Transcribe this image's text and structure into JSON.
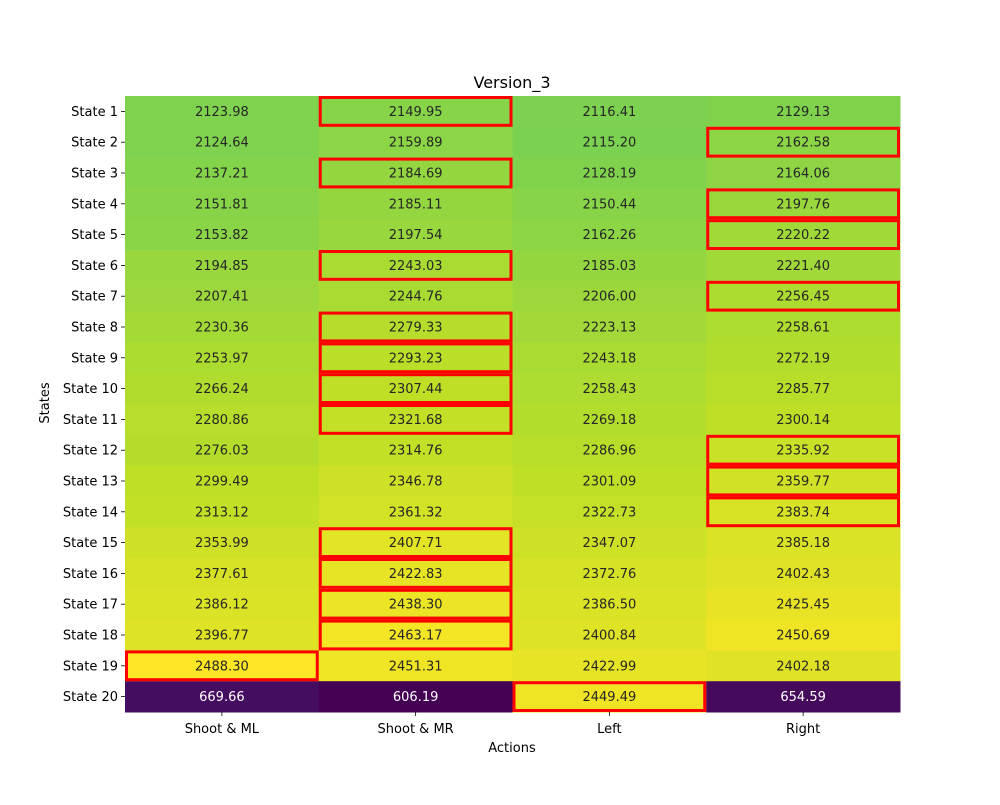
{
  "chart_data": {
    "type": "heatmap",
    "title": "Version_3",
    "xlabel": "Actions",
    "ylabel": "States",
    "columns": [
      "Shoot & ML",
      "Shoot & MR",
      "Left",
      "Right"
    ],
    "rows": [
      "State 1",
      "State 2",
      "State 3",
      "State 4",
      "State 5",
      "State 6",
      "State 7",
      "State 8",
      "State 9",
      "State 10",
      "State 11",
      "State 12",
      "State 13",
      "State 14",
      "State 15",
      "State 16",
      "State 17",
      "State 18",
      "State 19",
      "State 20"
    ],
    "values": [
      [
        2123.98,
        2149.95,
        2116.41,
        2129.13
      ],
      [
        2124.64,
        2159.89,
        2115.2,
        2162.58
      ],
      [
        2137.21,
        2184.69,
        2128.19,
        2164.06
      ],
      [
        2151.81,
        2185.11,
        2150.44,
        2197.76
      ],
      [
        2153.82,
        2197.54,
        2162.26,
        2220.22
      ],
      [
        2194.85,
        2243.03,
        2185.03,
        2221.4
      ],
      [
        2207.41,
        2244.76,
        2206.0,
        2256.45
      ],
      [
        2230.36,
        2279.33,
        2223.13,
        2258.61
      ],
      [
        2253.97,
        2293.23,
        2243.18,
        2272.19
      ],
      [
        2266.24,
        2307.44,
        2258.43,
        2285.77
      ],
      [
        2280.86,
        2321.68,
        2269.18,
        2300.14
      ],
      [
        2276.03,
        2314.76,
        2286.96,
        2335.92
      ],
      [
        2299.49,
        2346.78,
        2301.09,
        2359.77
      ],
      [
        2313.12,
        2361.32,
        2322.73,
        2383.74
      ],
      [
        2353.99,
        2407.71,
        2347.07,
        2385.18
      ],
      [
        2377.61,
        2422.83,
        2372.76,
        2402.43
      ],
      [
        2386.12,
        2438.3,
        2386.5,
        2425.45
      ],
      [
        2396.77,
        2463.17,
        2400.84,
        2450.69
      ],
      [
        2488.3,
        2451.31,
        2422.99,
        2402.18
      ],
      [
        669.66,
        606.19,
        2449.49,
        654.59
      ]
    ],
    "highlighted_max_column_index": [
      1,
      3,
      1,
      3,
      3,
      1,
      3,
      1,
      1,
      1,
      1,
      3,
      3,
      3,
      1,
      1,
      1,
      1,
      0,
      2
    ],
    "highlight_color": "#ff0000",
    "colormap": "viridis",
    "value_range": [
      606.19,
      2488.3
    ],
    "legend": "none",
    "grid": false
  }
}
